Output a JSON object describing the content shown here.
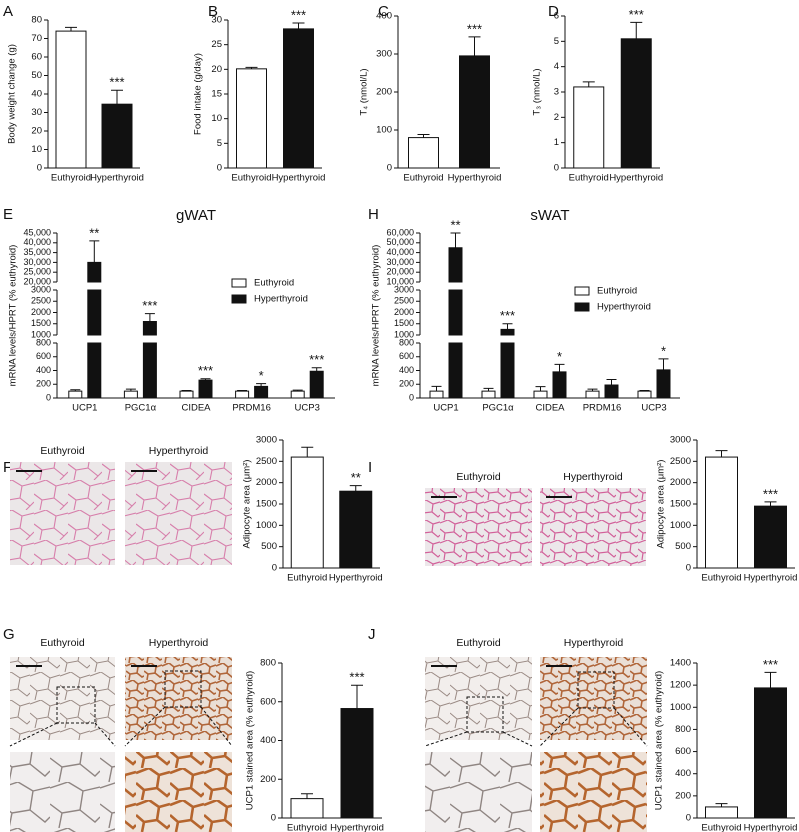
{
  "chart_data": [
    {
      "type": "bar",
      "panel": "A",
      "ylabel": "Body weight change (g)",
      "categories": [
        "Euthyroid",
        "Hyperthyroid"
      ],
      "values": [
        74,
        34.5
      ],
      "errors": [
        2,
        7.5
      ],
      "colors": [
        "#ffffff",
        "#111111"
      ],
      "significance": [
        null,
        "***"
      ],
      "ylim": [
        0,
        80
      ],
      "yticks": [
        0,
        10,
        20,
        30,
        40,
        50,
        60,
        70,
        80
      ]
    },
    {
      "type": "bar",
      "panel": "B",
      "ylabel": "Food intake (g/day)",
      "categories": [
        "Euthyroid",
        "Hyperthyroid"
      ],
      "values": [
        20.1,
        28.2
      ],
      "errors": [
        0.3,
        1.2
      ],
      "colors": [
        "#ffffff",
        "#111111"
      ],
      "significance": [
        null,
        "***"
      ],
      "ylim": [
        0,
        30
      ],
      "yticks": [
        0,
        5,
        10,
        15,
        20,
        25,
        30
      ]
    },
    {
      "type": "bar",
      "panel": "C",
      "ylabel": "T₄ (nmol/L)",
      "categories": [
        "Euthyroid",
        "Hyperthyroid"
      ],
      "values": [
        80,
        295
      ],
      "errors": [
        8,
        50
      ],
      "colors": [
        "#ffffff",
        "#111111"
      ],
      "significance": [
        null,
        "***"
      ],
      "ylim": [
        0,
        400
      ],
      "yticks": [
        0,
        100,
        200,
        300,
        400
      ]
    },
    {
      "type": "bar",
      "panel": "D",
      "ylabel": "T₃ (nmol/L)",
      "categories": [
        "Euthyroid",
        "Hyperthyroid"
      ],
      "values": [
        3.2,
        5.1
      ],
      "errors": [
        0.2,
        0.65
      ],
      "colors": [
        "#ffffff",
        "#111111"
      ],
      "significance": [
        null,
        "***"
      ],
      "ylim": [
        0,
        6
      ],
      "yticks": [
        0,
        1,
        2,
        3,
        4,
        5,
        6
      ]
    },
    {
      "type": "grouped_bar",
      "panel": "E",
      "title": "gWAT",
      "ylabel": "mRNA levels/HPRT (% euthyroid)",
      "categories": [
        "UCP1",
        "PGC1α",
        "CIDEA",
        "PRDM16",
        "UCP3"
      ],
      "legend": "right",
      "series": [
        {
          "name": "Euthyroid",
          "color": "#ffffff",
          "values": [
            100,
            100,
            100,
            100,
            100
          ],
          "errors": [
            20,
            30,
            10,
            10,
            15
          ],
          "significance": [
            null,
            null,
            null,
            null,
            null
          ]
        },
        {
          "name": "Hyperthyroid",
          "color": "#111111",
          "values": [
            30000,
            1600,
            260,
            170,
            390
          ],
          "errors": [
            11000,
            350,
            20,
            40,
            50
          ],
          "significance": [
            "**",
            "***",
            "***",
            "*",
            "***"
          ]
        }
      ],
      "segments": [
        {
          "ylim": [
            0,
            800
          ],
          "yticks": [
            0,
            200,
            400,
            600,
            800
          ]
        },
        {
          "ylim": [
            1000,
            3000
          ],
          "yticks": [
            1000,
            1500,
            2000,
            2500,
            3000
          ]
        },
        {
          "ylim": [
            20000,
            45000
          ],
          "yticks": [
            {
              "value": 20000,
              "label": "20,000"
            },
            {
              "value": 25000,
              "label": "25,000"
            },
            {
              "value": 30000,
              "label": "30,000"
            },
            {
              "value": 35000,
              "label": "35,000"
            },
            {
              "value": 40000,
              "label": "40,000"
            },
            {
              "value": 45000,
              "label": "45,000"
            }
          ]
        }
      ]
    },
    {
      "type": "grouped_bar",
      "panel": "H",
      "title": "sWAT",
      "ylabel": "mRNA levels/HPRT (% euthyroid)",
      "categories": [
        "UCP1",
        "PGC1α",
        "CIDEA",
        "PRDM16",
        "UCP3"
      ],
      "legend": "right",
      "series": [
        {
          "name": "Euthyroid",
          "color": "#ffffff",
          "values": [
            100,
            100,
            100,
            100,
            100
          ],
          "errors": [
            70,
            40,
            65,
            30,
            10
          ],
          "significance": [
            null,
            null,
            null,
            null,
            null
          ]
        },
        {
          "name": "Hyperthyroid",
          "color": "#111111",
          "values": [
            45000,
            1250,
            380,
            190,
            410
          ],
          "errors": [
            15000,
            250,
            110,
            80,
            160
          ],
          "significance": [
            "**",
            "***",
            "*",
            null,
            "*"
          ]
        }
      ],
      "segments": [
        {
          "ylim": [
            0,
            800
          ],
          "yticks": [
            0,
            200,
            400,
            600,
            800
          ]
        },
        {
          "ylim": [
            1000,
            3000
          ],
          "yticks": [
            1000,
            1500,
            2000,
            2500,
            3000
          ]
        },
        {
          "ylim": [
            10000,
            60000
          ],
          "yticks": [
            {
              "value": 10000,
              "label": "10,000"
            },
            {
              "value": 20000,
              "label": "20,000"
            },
            {
              "value": 30000,
              "label": "30,000"
            },
            {
              "value": 40000,
              "label": "40,000"
            },
            {
              "value": 50000,
              "label": "50,000"
            },
            {
              "value": 60000,
              "label": "60,000"
            }
          ]
        }
      ]
    },
    {
      "type": "bar",
      "panel": "F",
      "image_labels": [
        "Euthyroid",
        "Hyperthyroid"
      ],
      "ylabel": "Adipocyte area (μm²)",
      "categories": [
        "Euthyroid",
        "Hyperthyroid"
      ],
      "values": [
        2600,
        1800
      ],
      "errors": [
        230,
        130
      ],
      "colors": [
        "#ffffff",
        "#111111"
      ],
      "significance": [
        null,
        "**"
      ],
      "ylim": [
        0,
        3000
      ],
      "yticks": [
        0,
        500,
        1000,
        1500,
        2000,
        2500,
        3000
      ]
    },
    {
      "type": "bar",
      "panel": "I",
      "image_labels": [
        "Euthyroid",
        "Hyperthyroid"
      ],
      "ylabel": "Adipocyte area (μm²)",
      "categories": [
        "Euthyroid",
        "Hyperthyroid"
      ],
      "values": [
        2600,
        1450
      ],
      "errors": [
        150,
        100
      ],
      "colors": [
        "#ffffff",
        "#111111"
      ],
      "significance": [
        null,
        "***"
      ],
      "ylim": [
        0,
        3000
      ],
      "yticks": [
        0,
        500,
        1000,
        1500,
        2000,
        2500,
        3000
      ]
    },
    {
      "type": "bar",
      "panel": "G",
      "image_labels": [
        "Euthyroid",
        "Hyperthyroid"
      ],
      "ylabel": "UCP1 stained area (% euthyroid)",
      "categories": [
        "Euthyroid",
        "Hyperthyroid"
      ],
      "values": [
        100,
        565
      ],
      "errors": [
        25,
        120
      ],
      "colors": [
        "#ffffff",
        "#111111"
      ],
      "significance": [
        null,
        "***"
      ],
      "ylim": [
        0,
        800
      ],
      "yticks": [
        0,
        200,
        400,
        600,
        800
      ]
    },
    {
      "type": "bar",
      "panel": "J",
      "image_labels": [
        "Euthyroid",
        "Hyperthyroid"
      ],
      "ylabel": "UCP1 stained area (% euthyroid)",
      "categories": [
        "Euthyroid",
        "Hyperthyroid"
      ],
      "values": [
        100,
        1175
      ],
      "errors": [
        30,
        140
      ],
      "colors": [
        "#ffffff",
        "#111111"
      ],
      "significance": [
        null,
        "***"
      ],
      "ylim": [
        0,
        1400
      ],
      "yticks": [
        0,
        200,
        400,
        600,
        800,
        1000,
        1200,
        1400
      ]
    }
  ]
}
